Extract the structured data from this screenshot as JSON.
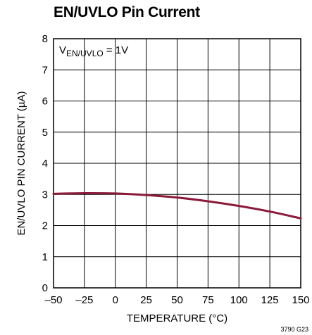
{
  "chart_data": {
    "type": "line",
    "title": "EN/UVLO Pin Current",
    "xlabel": "TEMPERATURE (°C)",
    "ylabel": "EN/UVLO PIN CURRENT (µA)",
    "xlim": [
      -50,
      150
    ],
    "ylim": [
      0,
      8
    ],
    "x_ticks": [
      -50,
      -25,
      0,
      25,
      50,
      75,
      100,
      125,
      150
    ],
    "y_ticks": [
      0,
      1,
      2,
      3,
      4,
      5,
      6,
      7,
      8
    ],
    "x_tick_labels": [
      "–50",
      "–25",
      "0",
      "25",
      "50",
      "75",
      "100",
      "125",
      "150"
    ],
    "y_tick_labels": [
      "0",
      "1",
      "2",
      "3",
      "4",
      "5",
      "6",
      "7",
      "8"
    ],
    "grid": true,
    "annotation": {
      "main": "V",
      "subscript": "EN/UVLO",
      "suffix": " = 1V"
    },
    "series": [
      {
        "color": "#8b1a3a",
        "x": [
          -50,
          -25,
          0,
          25,
          50,
          75,
          100,
          125,
          150
        ],
        "y": [
          3.02,
          3.04,
          3.03,
          2.98,
          2.9,
          2.78,
          2.63,
          2.45,
          2.23
        ]
      }
    ],
    "figure_code": "3790 G23"
  }
}
